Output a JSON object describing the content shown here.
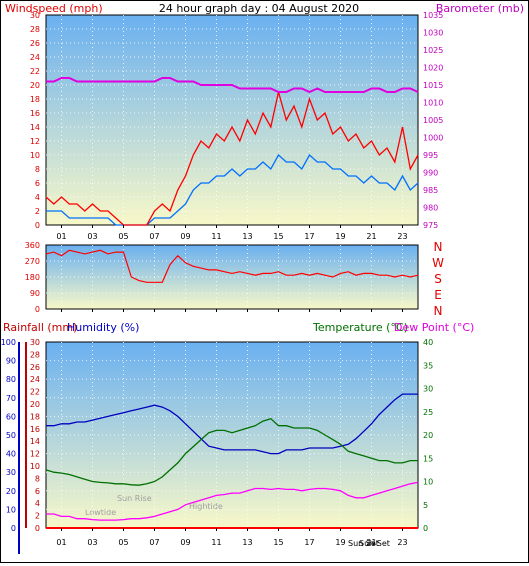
{
  "header": {
    "left_label": "Windspeed (mph)",
    "title": "24 hour graph day : 04 August 2020",
    "right_label": "Barometer (mb)"
  },
  "colors": {
    "wind": "#ff0000",
    "wind_avg": "#0070ff",
    "barometer": "#e000e0",
    "temperature": "#007000",
    "dewpoint": "#ff00ff",
    "humidity": "#0000c0",
    "rainfall": "#c00000",
    "panel_top": "#6ab0f0",
    "panel_bottom": "#f8f8c8"
  },
  "wind_dir_labels": [
    "N",
    "W",
    "S",
    "E",
    "N"
  ],
  "bottom_header": {
    "rainfall": "Rainfall (mm)",
    "humidity": "Humidity (%)",
    "temperature": "Temperature (°C)",
    "dewpoint": "Dew Point (°C)"
  },
  "annotations": {
    "sun_rise": "Sun Rise",
    "lowtide": "Lowtide",
    "hightide": "Hightide",
    "sun_set": "Sun Set",
    "sun_set_2": "Sun Set"
  },
  "x_tick_labels": [
    "01",
    "03",
    "05",
    "07",
    "09",
    "11",
    "13",
    "15",
    "17",
    "19",
    "21",
    "23"
  ],
  "chart_data": [
    {
      "type": "line",
      "title": "24 hour graph day : 04 August 2020",
      "ylabel": "Windspeed (mph)",
      "y2label": "Barometer (mb)",
      "ylim": [
        0,
        30
      ],
      "y2lim": [
        975,
        1035
      ],
      "y_ticks": [
        "0",
        "2",
        "4",
        "6",
        "8",
        "10",
        "12",
        "14",
        "16",
        "18",
        "20",
        "22",
        "24",
        "26",
        "28",
        "30"
      ],
      "y2_ticks": [
        "975",
        "980",
        "985",
        "990",
        "995",
        "1000",
        "1005",
        "1010",
        "1015",
        "1020",
        "1025",
        "1030",
        "1035"
      ],
      "x_hours": [
        0,
        0.5,
        1,
        1.5,
        2,
        2.5,
        3,
        3.5,
        4,
        4.5,
        5,
        5.5,
        6,
        6.5,
        7,
        7.5,
        8,
        8.5,
        9,
        9.5,
        10,
        10.5,
        11,
        11.5,
        12,
        12.5,
        13,
        13.5,
        14,
        14.5,
        15,
        15.5,
        16,
        16.5,
        17,
        17.5,
        18,
        18.5,
        19,
        19.5,
        20,
        20.5,
        21,
        21.5,
        22,
        22.5,
        23,
        23.5,
        24
      ],
      "series": [
        {
          "name": "gust",
          "values": [
            4,
            3,
            4,
            3,
            3,
            2,
            3,
            2,
            2,
            1,
            0,
            0,
            0,
            0,
            2,
            3,
            2,
            5,
            7,
            10,
            12,
            11,
            13,
            12,
            14,
            12,
            15,
            13,
            16,
            14,
            19,
            15,
            17,
            14,
            18,
            15,
            16,
            13,
            14,
            12,
            13,
            11,
            12,
            10,
            11,
            9,
            14,
            8,
            10
          ]
        },
        {
          "name": "average",
          "values": [
            2,
            2,
            2,
            1,
            1,
            1,
            1,
            1,
            1,
            0,
            0,
            0,
            0,
            0,
            1,
            1,
            1,
            2,
            3,
            5,
            6,
            6,
            7,
            7,
            8,
            7,
            8,
            8,
            9,
            8,
            10,
            9,
            9,
            8,
            10,
            9,
            9,
            8,
            8,
            7,
            7,
            6,
            7,
            6,
            6,
            5,
            7,
            5,
            6
          ]
        },
        {
          "name": "barometer",
          "values": [
            1016,
            1016,
            1017,
            1017,
            1016,
            1016,
            1016,
            1016,
            1016,
            1016,
            1016,
            1016,
            1016,
            1016,
            1016,
            1017,
            1017,
            1016,
            1016,
            1016,
            1015,
            1015,
            1015,
            1015,
            1015,
            1014,
            1014,
            1014,
            1014,
            1014,
            1013,
            1013,
            1014,
            1014,
            1013,
            1014,
            1013,
            1013,
            1013,
            1013,
            1013,
            1013,
            1014,
            1014,
            1013,
            1013,
            1014,
            1014,
            1013
          ]
        }
      ]
    },
    {
      "type": "line",
      "ylabel": "Wind direction",
      "ylim": [
        0,
        360
      ],
      "y_ticks": [
        "0",
        "90",
        "180",
        "270",
        "360"
      ],
      "x_hours": [
        0,
        0.5,
        1,
        1.5,
        2,
        2.5,
        3,
        3.5,
        4,
        4.5,
        5,
        5.5,
        6,
        6.5,
        7,
        7.5,
        8,
        8.5,
        9,
        9.5,
        10,
        10.5,
        11,
        11.5,
        12,
        12.5,
        13,
        13.5,
        14,
        14.5,
        15,
        15.5,
        16,
        16.5,
        17,
        17.5,
        18,
        18.5,
        19,
        19.5,
        20,
        20.5,
        21,
        21.5,
        22,
        22.5,
        23,
        23.5,
        24
      ],
      "series": [
        {
          "name": "direction",
          "values": [
            310,
            320,
            300,
            330,
            320,
            310,
            320,
            330,
            310,
            320,
            320,
            180,
            160,
            150,
            150,
            150,
            250,
            300,
            260,
            240,
            230,
            220,
            220,
            210,
            200,
            210,
            200,
            190,
            200,
            200,
            210,
            190,
            190,
            200,
            190,
            200,
            190,
            180,
            200,
            210,
            190,
            200,
            200,
            190,
            190,
            180,
            190,
            180,
            190
          ]
        }
      ]
    },
    {
      "type": "line",
      "ylabel": "Rainfall (mm)",
      "y_humidity_label": "Humidity (%)",
      "y2label": "Temperature (°C)",
      "y3label": "Dew Point (°C)",
      "ylim_rain": [
        0,
        30
      ],
      "ylim_humidity": [
        0,
        100
      ],
      "ylim_temp": [
        0,
        40
      ],
      "rain_ticks": [
        "0",
        "2",
        "4",
        "6",
        "8",
        "10",
        "12",
        "14",
        "16",
        "18",
        "20",
        "22",
        "24",
        "26",
        "28",
        "30"
      ],
      "humidity_ticks": [
        "0",
        "10",
        "20",
        "30",
        "40",
        "50",
        "60",
        "70",
        "80",
        "90",
        "100"
      ],
      "temp_ticks": [
        "0",
        "5",
        "10",
        "15",
        "20",
        "25",
        "30",
        "35",
        "40"
      ],
      "x_hours": [
        0,
        0.5,
        1,
        1.5,
        2,
        2.5,
        3,
        3.5,
        4,
        4.5,
        5,
        5.5,
        6,
        6.5,
        7,
        7.5,
        8,
        8.5,
        9,
        9.5,
        10,
        10.5,
        11,
        11.5,
        12,
        12.5,
        13,
        13.5,
        14,
        14.5,
        15,
        15.5,
        16,
        16.5,
        17,
        17.5,
        18,
        18.5,
        19,
        19.5,
        20,
        20.5,
        21,
        21.5,
        22,
        22.5,
        23,
        23.5,
        24
      ],
      "series": [
        {
          "name": "humidity",
          "values": [
            55,
            55,
            56,
            56,
            57,
            57,
            58,
            59,
            60,
            61,
            62,
            63,
            64,
            65,
            66,
            65,
            63,
            60,
            56,
            52,
            48,
            44,
            43,
            42,
            42,
            42,
            42,
            42,
            41,
            40,
            40,
            42,
            42,
            42,
            43,
            43,
            43,
            43,
            44,
            45,
            48,
            52,
            56,
            61,
            65,
            69,
            72,
            72,
            72
          ]
        },
        {
          "name": "temperature",
          "values": [
            12.5,
            12,
            11.8,
            11.5,
            11,
            10.5,
            10,
            9.8,
            9.7,
            9.5,
            9.5,
            9.3,
            9.2,
            9.5,
            10,
            11,
            12.5,
            14,
            16,
            17.5,
            19,
            20.5,
            21,
            21,
            20.5,
            21,
            21.5,
            22,
            23,
            23.5,
            22,
            22,
            21.5,
            21.5,
            21.5,
            21,
            20,
            19,
            18,
            16.5,
            16,
            15.5,
            15,
            14.5,
            14.5,
            14,
            14,
            14.5,
            14.5
          ]
        },
        {
          "name": "dewpoint",
          "values": [
            3,
            3,
            2.5,
            2.5,
            2,
            2,
            1.8,
            1.7,
            1.7,
            1.7,
            1.8,
            2,
            2,
            2.2,
            2.5,
            3,
            3.5,
            4,
            5,
            5.5,
            6,
            6.5,
            7,
            7.2,
            7.5,
            7.5,
            8,
            8.5,
            8.5,
            8.3,
            8.5,
            8.3,
            8.3,
            8,
            8.3,
            8.5,
            8.5,
            8.3,
            8,
            7,
            6.5,
            6.5,
            7,
            7.5,
            8,
            8.5,
            9,
            9.5,
            9.8
          ]
        },
        {
          "name": "rainfall",
          "values": [
            0,
            0,
            0,
            0,
            0,
            0,
            0,
            0,
            0,
            0,
            0,
            0,
            0,
            0,
            0,
            0,
            0,
            0,
            0,
            0,
            0,
            0,
            0,
            0,
            0,
            0,
            0,
            0,
            0,
            0,
            0,
            0,
            0,
            0,
            0,
            0,
            0,
            0,
            0,
            0,
            0,
            0,
            0,
            0,
            0,
            0,
            0,
            0,
            0
          ]
        }
      ]
    }
  ]
}
